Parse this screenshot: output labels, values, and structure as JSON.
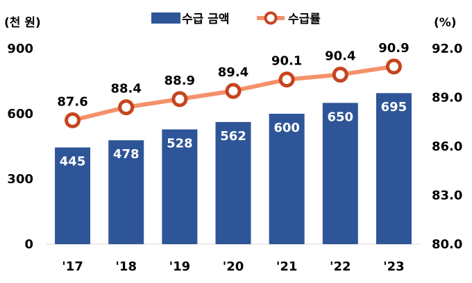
{
  "chart_data": {
    "type": "bar",
    "categories": [
      "'17",
      "'18",
      "'19",
      "'20",
      "'21",
      "'22",
      "'23"
    ],
    "series": [
      {
        "name": "수급 금액",
        "type": "bar",
        "axis": "left",
        "values": [
          445,
          478,
          528,
          562,
          600,
          650,
          695
        ],
        "color": "#2E5597"
      },
      {
        "name": "수급률",
        "type": "line",
        "axis": "right",
        "values": [
          87.6,
          88.4,
          88.9,
          89.4,
          90.1,
          90.4,
          90.9
        ],
        "color": "#F4916A",
        "marker_color": "#C5451E"
      }
    ],
    "left_axis": {
      "unit_label": "(천 원)",
      "ylim": [
        0,
        900
      ],
      "ticks": [
        "0",
        "300",
        "600",
        "900"
      ]
    },
    "right_axis": {
      "unit_label": "(%)",
      "ylim": [
        80.0,
        92.0
      ],
      "ticks": [
        "80.0",
        "83.0",
        "86.0",
        "89.0",
        "92.0"
      ]
    },
    "legend_position": "top-center",
    "grid": false
  }
}
